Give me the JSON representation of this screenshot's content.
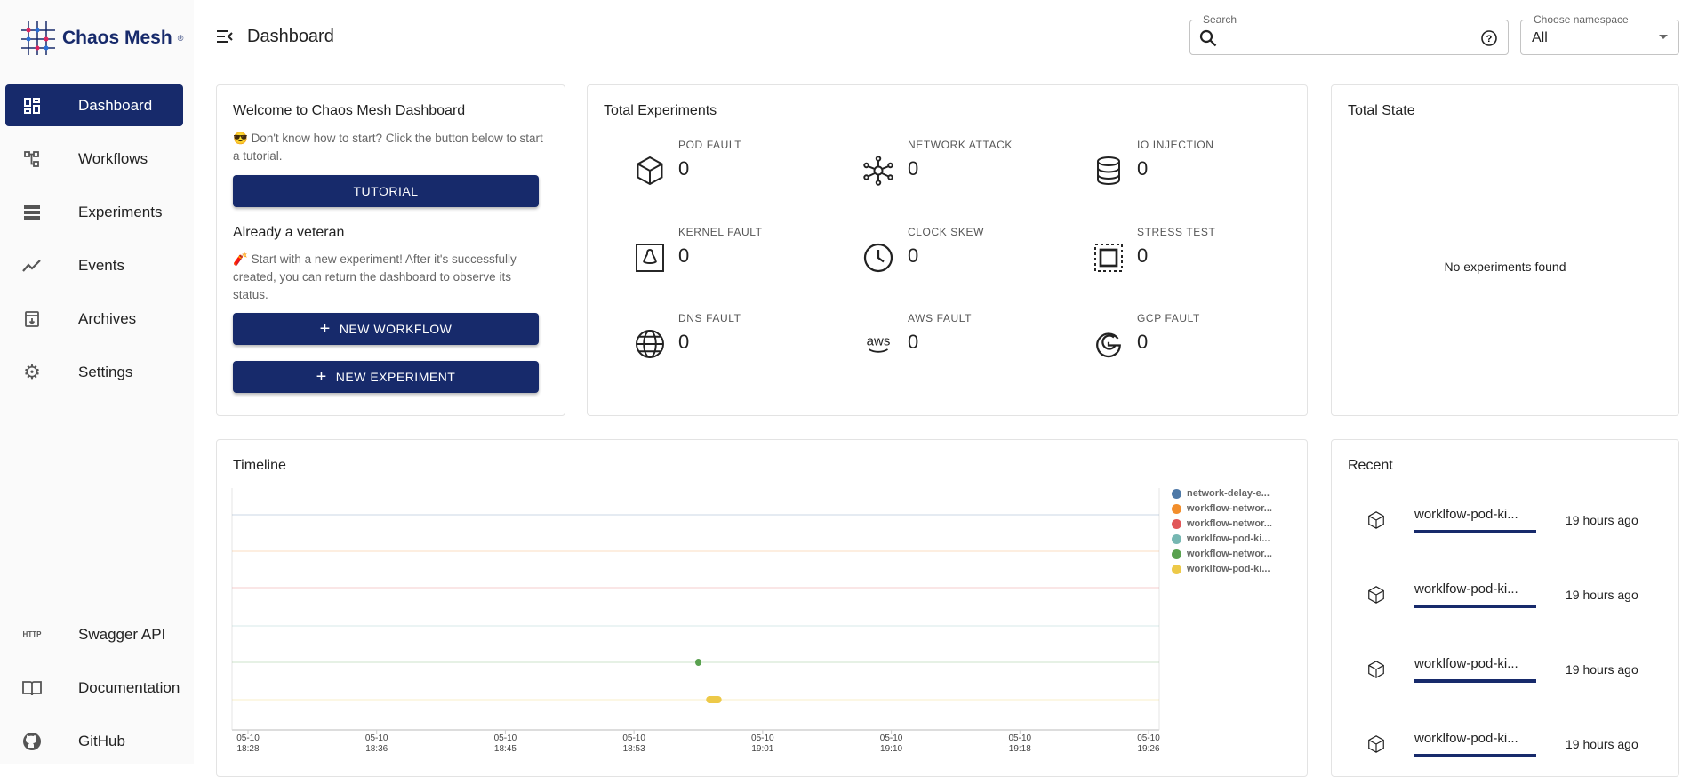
{
  "brand": {
    "name": "Chaos Mesh",
    "mark": "®"
  },
  "sidebar": {
    "items": [
      {
        "label": "Dashboard",
        "icon": "dashboard-icon",
        "active": true
      },
      {
        "label": "Workflows",
        "icon": "workflow-icon"
      },
      {
        "label": "Experiments",
        "icon": "experiments-icon"
      },
      {
        "label": "Events",
        "icon": "events-icon"
      },
      {
        "label": "Archives",
        "icon": "archive-icon"
      },
      {
        "label": "Settings",
        "icon": "gear-icon"
      }
    ],
    "bottom": [
      {
        "label": "Swagger API",
        "icon": "http-icon",
        "icon_text": "HTTP"
      },
      {
        "label": "Documentation",
        "icon": "book-icon"
      },
      {
        "label": "GitHub",
        "icon": "github-icon"
      }
    ]
  },
  "header": {
    "title": "Dashboard",
    "search_label": "Search",
    "search_value": "",
    "namespace_label": "Choose namespace",
    "namespace_value": "All"
  },
  "welcome": {
    "title": "Welcome to Chaos Mesh Dashboard",
    "intro": "Don't know how to start? Click the button below to start a tutorial.",
    "tutorial": "TUTORIAL",
    "veteran_title": "Already a veteran",
    "veteran_text": "Start with a new experiment! After it's successfully created, you can return the dashboard to observe its status.",
    "new_workflow": "NEW WORKFLOW",
    "new_experiment": "NEW EXPERIMENT"
  },
  "total_experiments": {
    "title": "Total Experiments",
    "items": [
      {
        "label": "POD FAULT",
        "value": "0",
        "icon": "cube-icon"
      },
      {
        "label": "NETWORK ATTACK",
        "value": "0",
        "icon": "network-icon"
      },
      {
        "label": "IO INJECTION",
        "value": "0",
        "icon": "database-icon"
      },
      {
        "label": "KERNEL FAULT",
        "value": "0",
        "icon": "linux-icon"
      },
      {
        "label": "CLOCK SKEW",
        "value": "0",
        "icon": "clock-icon"
      },
      {
        "label": "STRESS TEST",
        "value": "0",
        "icon": "stress-icon"
      },
      {
        "label": "DNS FAULT",
        "value": "0",
        "icon": "globe-icon"
      },
      {
        "label": "AWS FAULT",
        "value": "0",
        "icon": "aws-icon"
      },
      {
        "label": "GCP FAULT",
        "value": "0",
        "icon": "google-icon"
      }
    ]
  },
  "total_state": {
    "title": "Total State",
    "empty": "No experiments found"
  },
  "timeline": {
    "title": "Timeline"
  },
  "chart_data": {
    "type": "scatter",
    "title": "Timeline",
    "x_ticks": [
      "05-10 18:28",
      "05-10 18:36",
      "05-10 18:45",
      "05-10 18:53",
      "05-10 19:01",
      "05-10 19:10",
      "05-10 19:18",
      "05-10 19:26"
    ],
    "series": [
      {
        "name": "network-delay-e...",
        "color": "#4e79a7",
        "events": []
      },
      {
        "name": "workflow-networ...",
        "color": "#f28e2b",
        "events": []
      },
      {
        "name": "workflow-networ...",
        "color": "#e15759",
        "events": []
      },
      {
        "name": "worklfow-pod-ki...",
        "color": "#76b7b2",
        "events": []
      },
      {
        "name": "workflow-networ...",
        "color": "#59a14f",
        "events": [
          {
            "start": "18:57",
            "end": "18:57"
          }
        ]
      },
      {
        "name": "worklfow-pod-ki...",
        "color": "#edc948",
        "events": [
          {
            "start": "18:57:30",
            "end": "18:58:30"
          }
        ]
      }
    ],
    "legend": "right",
    "grid": true
  },
  "recent": {
    "title": "Recent",
    "items": [
      {
        "name": "worklfow-pod-ki...",
        "time": "19 hours ago"
      },
      {
        "name": "worklfow-pod-ki...",
        "time": "19 hours ago"
      },
      {
        "name": "worklfow-pod-ki...",
        "time": "19 hours ago"
      },
      {
        "name": "worklfow-pod-ki...",
        "time": "19 hours ago"
      }
    ]
  }
}
